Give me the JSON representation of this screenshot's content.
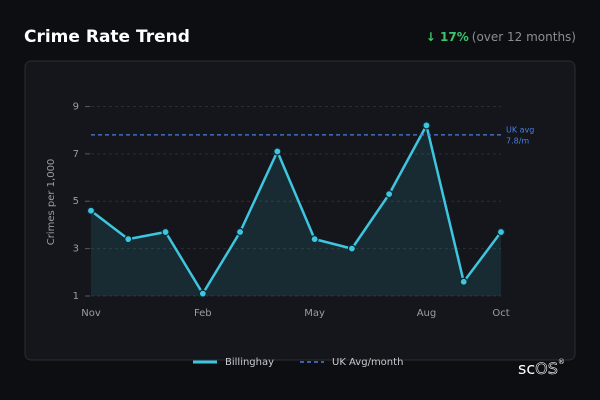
{
  "chart_data": {
    "type": "line",
    "title": "Crime Rate Trend",
    "change_label": "↓ 17%",
    "change_note": "(over 12 months)",
    "y_label": "Crimes per 1,000",
    "categories": [
      "Nov",
      null,
      null,
      "Feb",
      null,
      null,
      "May",
      null,
      null,
      "Aug",
      null,
      "Oct"
    ],
    "series": [
      {
        "name": "Billinghay",
        "color": "#3ec6e0",
        "values": [
          4.6,
          3.4,
          3.7,
          1.1,
          3.7,
          7.1,
          3.4,
          3.0,
          5.3,
          8.2,
          1.6,
          3.7
        ]
      }
    ],
    "reference": {
      "name": "UK Avg/month",
      "color": "#4a7fe0",
      "value": 7.8,
      "label_lines": [
        "UK avg",
        "7.8/m"
      ]
    },
    "ylim": [
      1,
      9.4
    ],
    "yticks": [
      1,
      3,
      5,
      7,
      9
    ],
    "grid": true,
    "brand": [
      "sc",
      "OS",
      "®"
    ]
  }
}
